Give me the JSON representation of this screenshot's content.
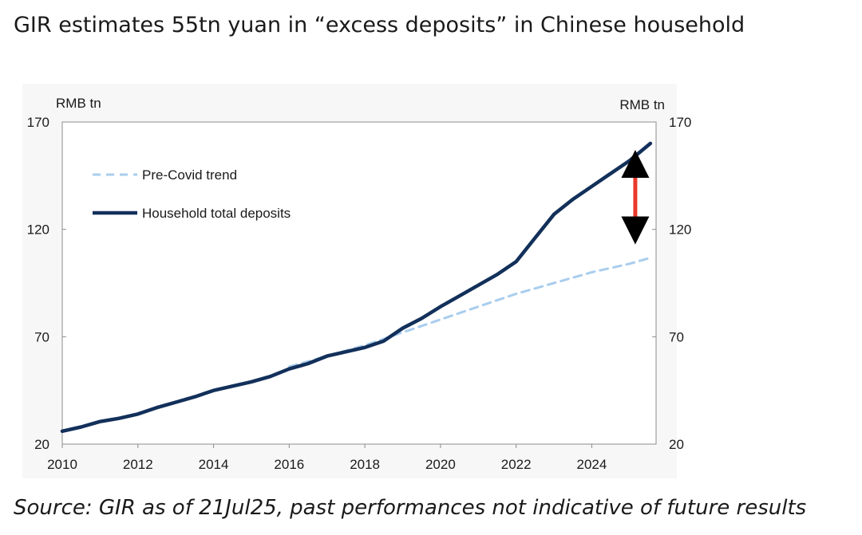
{
  "header": {
    "title": "GIR estimates 55tn yuan in “excess deposits” in Chinese household"
  },
  "footer": {
    "source": "Source: GIR as of 21Jul25, past performances not indicative of future results"
  },
  "chart_data": {
    "type": "line",
    "left_axis_unit": "RMB tn",
    "right_axis_unit": "RMB tn",
    "xlim": [
      2010,
      2025.7
    ],
    "ylim": [
      20,
      170
    ],
    "x_ticks": [
      "2010",
      "2012",
      "2014",
      "2016",
      "2018",
      "2020",
      "2022",
      "2024"
    ],
    "y_ticks": [
      "20",
      "70",
      "120",
      "170"
    ],
    "grid": false,
    "legend_position": "top-left",
    "colors": {
      "trend": "#a9cdee",
      "deposits": "#12305a",
      "arrow": "#e8392a",
      "plot_bg": "#ffffff"
    },
    "series": [
      {
        "name": "Pre-Covid trend",
        "style": "dashed",
        "x": [
          2016,
          2017,
          2018,
          2019,
          2020,
          2021,
          2022,
          2023,
          2024,
          2025,
          2025.6
        ],
        "y": [
          56,
          61,
          66,
          72,
          78,
          84,
          90,
          95,
          100,
          104,
          107
        ]
      },
      {
        "name": "Household total deposits",
        "style": "solid",
        "x": [
          2010,
          2010.5,
          2011,
          2011.5,
          2012,
          2012.5,
          2013,
          2013.5,
          2014,
          2014.5,
          2015,
          2015.5,
          2016,
          2016.5,
          2017,
          2017.5,
          2018,
          2018.5,
          2019,
          2019.5,
          2020,
          2020.5,
          2021,
          2021.5,
          2022,
          2022.5,
          2023,
          2023.5,
          2024,
          2024.5,
          2025,
          2025.55
        ],
        "y": [
          26,
          28,
          30.5,
          32,
          34,
          37,
          39.5,
          42,
          45,
          47,
          49,
          51.5,
          55,
          57.5,
          61,
          63,
          65,
          68,
          74,
          78.5,
          84,
          89,
          94,
          99,
          105,
          116,
          127,
          134,
          140,
          146,
          152,
          160
        ]
      }
    ],
    "annotations": [
      {
        "type": "double-arrow",
        "x": 2025.15,
        "y_from": 118,
        "y_to": 152
      }
    ]
  }
}
